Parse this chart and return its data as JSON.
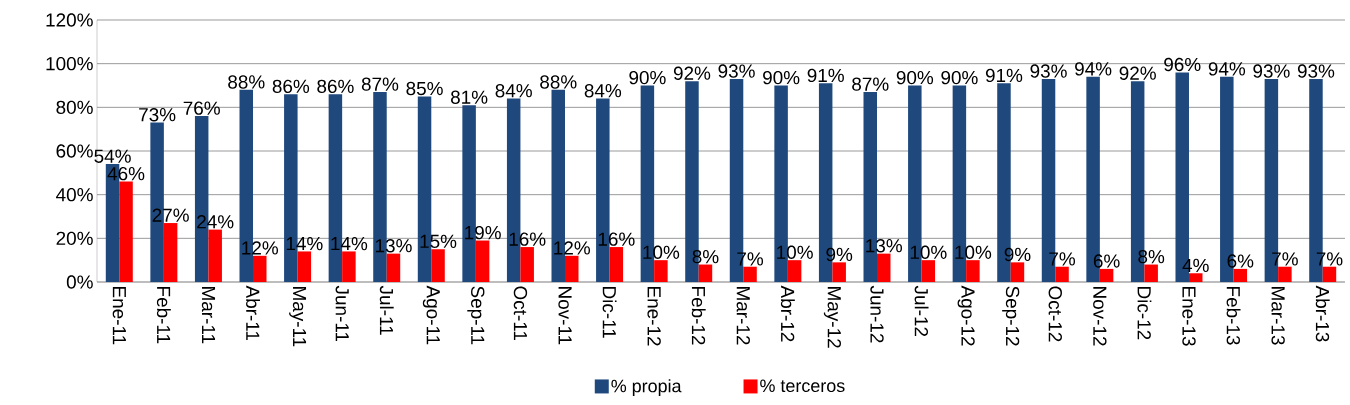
{
  "chart_data": {
    "type": "bar",
    "categories": [
      "Ene-11",
      "Feb-11",
      "Mar-11",
      "Abr-11",
      "May-11",
      "Jun-11",
      "Jul-11",
      "Ago-11",
      "Sep-11",
      "Oct-11",
      "Nov-11",
      "Dic-11",
      "Ene-12",
      "Feb-12",
      "Mar-12",
      "Abr-12",
      "May-12",
      "Jun-12",
      "Jul-12",
      "Ago-12",
      "Sep-12",
      "Oct-12",
      "Nov-12",
      "Dic-12",
      "Ene-13",
      "Feb-13",
      "Mar-13",
      "Abr-13"
    ],
    "series": [
      {
        "name": "% propia",
        "color": "#1f497d",
        "values": [
          54,
          73,
          76,
          88,
          86,
          86,
          87,
          85,
          81,
          84,
          88,
          84,
          90,
          92,
          93,
          90,
          91,
          87,
          90,
          90,
          91,
          93,
          94,
          92,
          96,
          94,
          93,
          93
        ],
        "value_labels": [
          "54%",
          "73%",
          "76%",
          "88%",
          "86%",
          "86%",
          "87%",
          "85%",
          "81%",
          "84%",
          "88%",
          "84%",
          "90%",
          "92%",
          "93%",
          "90%",
          "91%",
          "87%",
          "90%",
          "90%",
          "91%",
          "93%",
          "94%",
          "92%",
          "96%",
          "94%",
          "93%",
          "93%"
        ]
      },
      {
        "name": "% terceros",
        "color": "#ff0000",
        "values": [
          46,
          27,
          24,
          12,
          14,
          14,
          13,
          15,
          19,
          16,
          12,
          16,
          10,
          8,
          7,
          10,
          9,
          13,
          10,
          10,
          9,
          7,
          6,
          8,
          4,
          6,
          7,
          7
        ],
        "value_labels": [
          "46%",
          "27%",
          "24%",
          "12%",
          "14%",
          "14%",
          "13%",
          "15%",
          "19%",
          "16%",
          "12%",
          "16%",
          "10%",
          "8%",
          "7%",
          "10%",
          "9%",
          "13%",
          "10%",
          "10%",
          "9%",
          "7%",
          "6%",
          "8%",
          "4%",
          "6%",
          "7%",
          "7%"
        ]
      }
    ],
    "ylim": [
      0,
      120
    ],
    "yticks": [
      {
        "value": 0,
        "label": "0%"
      },
      {
        "value": 20,
        "label": "20%"
      },
      {
        "value": 40,
        "label": "40%"
      },
      {
        "value": 60,
        "label": "60%"
      },
      {
        "value": 80,
        "label": "80%"
      },
      {
        "value": 100,
        "label": "100%"
      },
      {
        "value": 120,
        "label": "120%"
      }
    ],
    "grid": "y",
    "legend": "bottom"
  }
}
